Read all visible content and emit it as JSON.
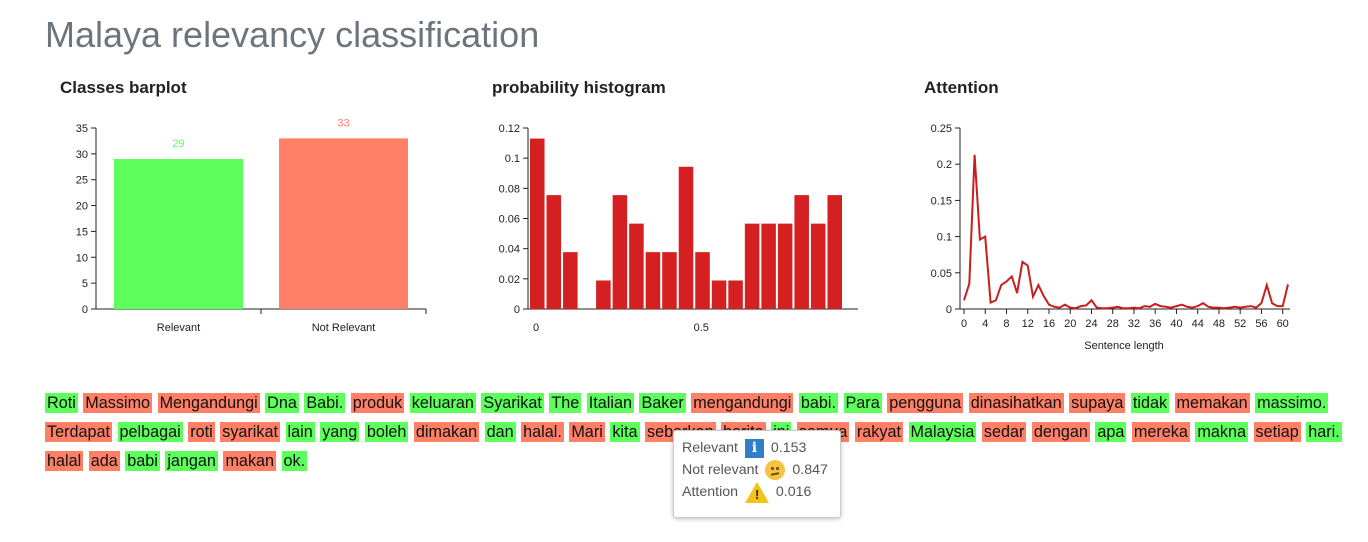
{
  "page": {
    "title": "Malaya relevancy classification"
  },
  "colors": {
    "relevant": "#5cff5c",
    "not_relevant": "#ff8066",
    "hist": "#d42020",
    "line": "#c81e1e"
  },
  "chart_data": [
    {
      "type": "bar",
      "title": "Classes barplot",
      "categories": [
        "Relevant",
        "Not Relevant"
      ],
      "values": [
        29,
        33
      ],
      "colors": [
        "#5cff5c",
        "#ff8066"
      ],
      "ylim": [
        0,
        35
      ],
      "yticks": [
        0,
        5,
        10,
        15,
        20,
        25,
        30,
        35
      ]
    },
    {
      "type": "bar",
      "title": "probability histogram",
      "bin_width": 0.05,
      "x": [
        0.0,
        0.05,
        0.1,
        0.15,
        0.2,
        0.25,
        0.3,
        0.35,
        0.4,
        0.45,
        0.5,
        0.55,
        0.6,
        0.65,
        0.7,
        0.75,
        0.8,
        0.85,
        0.9
      ],
      "values": [
        0.113,
        0.0755,
        0.0377,
        0,
        0.0189,
        0.0755,
        0.0566,
        0.0377,
        0.0377,
        0.0943,
        0.0377,
        0.0189,
        0.0189,
        0.0566,
        0.0566,
        0.0566,
        0.0755,
        0.0566,
        0.0755
      ],
      "xlim": [
        0,
        0.95
      ],
      "ylim": [
        0,
        0.12
      ],
      "xticks": [
        "0",
        "0.5"
      ],
      "yticks": [
        "0",
        "0.02",
        "0.04",
        "0.06",
        "0.08",
        "0.1",
        "0.12"
      ]
    },
    {
      "type": "line",
      "title": "Attention",
      "xlabel": "Sentence length",
      "x": [
        0,
        1,
        2,
        3,
        4,
        5,
        6,
        7,
        8,
        9,
        10,
        11,
        12,
        13,
        14,
        15,
        16,
        17,
        18,
        19,
        20,
        21,
        22,
        23,
        24,
        25,
        26,
        27,
        28,
        29,
        30,
        31,
        32,
        33,
        34,
        35,
        36,
        37,
        38,
        39,
        40,
        41,
        42,
        43,
        44,
        45,
        46,
        47,
        48,
        49,
        50,
        51,
        52,
        53,
        54,
        55,
        56,
        57,
        58,
        59,
        60,
        61
      ],
      "values": [
        0.012,
        0.035,
        0.213,
        0.096,
        0.1,
        0.009,
        0.012,
        0.033,
        0.038,
        0.045,
        0.022,
        0.065,
        0.06,
        0.017,
        0.033,
        0.018,
        0.006,
        0.003,
        0.002,
        0.006,
        0.002,
        0.001,
        0.004,
        0.005,
        0.012,
        0.002,
        0.001,
        0.001,
        0.002,
        0.003,
        0.001,
        0.001,
        0.002,
        0.001,
        0.004,
        0.003,
        0.007,
        0.004,
        0.003,
        0.002,
        0.004,
        0.006,
        0.003,
        0.002,
        0.004,
        0.008,
        0.003,
        0.002,
        0.002,
        0.001,
        0.002,
        0.003,
        0.002,
        0.003,
        0.004,
        0.002,
        0.008,
        0.033,
        0.008,
        0.004,
        0.004,
        0.034
      ],
      "xlim": [
        0,
        61
      ],
      "ylim": [
        0,
        0.25
      ],
      "xticks": [
        0,
        4,
        8,
        12,
        16,
        20,
        24,
        28,
        32,
        36,
        40,
        44,
        48,
        52,
        56,
        60
      ],
      "yticks": [
        "0",
        "0.05",
        "0.1",
        "0.15",
        "0.2",
        "0.25"
      ]
    }
  ],
  "words": [
    {
      "t": "Roti",
      "c": "r"
    },
    {
      "t": "Massimo",
      "c": "n"
    },
    {
      "t": "Mengandungi",
      "c": "n"
    },
    {
      "t": "Dna",
      "c": "r"
    },
    {
      "t": "Babi.",
      "c": "r"
    },
    {
      "t": "produk",
      "c": "n"
    },
    {
      "t": "keluaran",
      "c": "r"
    },
    {
      "t": "Syarikat",
      "c": "r"
    },
    {
      "t": "The",
      "c": "r"
    },
    {
      "t": "Italian",
      "c": "r"
    },
    {
      "t": "Baker",
      "c": "r"
    },
    {
      "t": "mengandungi",
      "c": "n"
    },
    {
      "t": "babi.",
      "c": "r"
    },
    {
      "t": "Para",
      "c": "r"
    },
    {
      "t": "pengguna",
      "c": "n"
    },
    {
      "t": "dinasihatkan",
      "c": "n"
    },
    {
      "t": "supaya",
      "c": "n"
    },
    {
      "t": "tidak",
      "c": "r"
    },
    {
      "t": "memakan",
      "c": "n"
    },
    {
      "t": "massimo.",
      "c": "r"
    },
    {
      "t": "Terdapat",
      "c": "n"
    },
    {
      "t": "pelbagai",
      "c": "r"
    },
    {
      "t": "roti",
      "c": "n"
    },
    {
      "t": "syarikat",
      "c": "n"
    },
    {
      "t": "lain",
      "c": "r"
    },
    {
      "t": "yang",
      "c": "r"
    },
    {
      "t": "boleh",
      "c": "r"
    },
    {
      "t": "dimakan",
      "c": "n"
    },
    {
      "t": "dan",
      "c": "r"
    },
    {
      "t": "halal.",
      "c": "n"
    },
    {
      "t": "Mari",
      "c": "n"
    },
    {
      "t": "kita",
      "c": "r"
    },
    {
      "t": "sebarkan",
      "c": "n"
    },
    {
      "t": "berita",
      "c": "n"
    },
    {
      "t": "ini",
      "c": "r"
    },
    {
      "t": "semua",
      "c": "n"
    },
    {
      "t": "rakyat",
      "c": "n"
    },
    {
      "t": "Malaysia",
      "c": "r"
    },
    {
      "t": "sedar",
      "c": "n"
    },
    {
      "t": "dengan",
      "c": "n"
    },
    {
      "t": "apa",
      "c": "r"
    },
    {
      "t": "mereka",
      "c": "n"
    },
    {
      "t": "makna",
      "c": "r"
    },
    {
      "t": "setiap",
      "c": "n"
    },
    {
      "t": "hari.",
      "c": "r"
    },
    {
      "t": "halal",
      "c": "n"
    },
    {
      "t": "ada",
      "c": "n"
    },
    {
      "t": "babi",
      "c": "r"
    },
    {
      "t": "jangan",
      "c": "r"
    },
    {
      "t": "makan",
      "c": "n"
    },
    {
      "t": "ok.",
      "c": "r"
    }
  ],
  "tooltip": {
    "relevant_label": "Relevant",
    "relevant_value": "0.153",
    "relevant_icon": "info-icon",
    "not_relevant_label": "Not relevant",
    "not_relevant_value": "0.847",
    "not_relevant_icon": "confused-face-icon",
    "attention_label": "Attention",
    "attention_value": "0.016",
    "attention_icon": "warning-icon"
  }
}
